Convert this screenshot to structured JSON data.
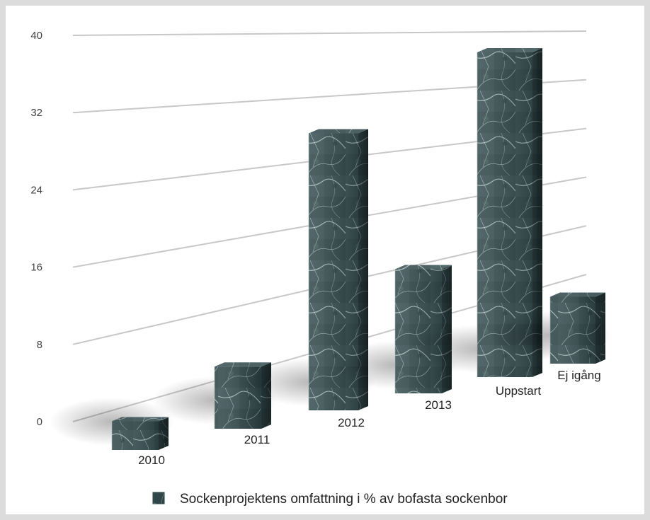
{
  "chart_data": {
    "type": "bar",
    "style": "3d-textured-marble",
    "categories": [
      "2010",
      "2011",
      "2012",
      "2013",
      "Uppstart",
      "Ej igång"
    ],
    "series": [
      {
        "name": "Sockenprojektens omfattning i % av bofasta sockenbor",
        "values": [
          3,
          6.5,
          29,
          13,
          34,
          7
        ]
      }
    ],
    "ylim": [
      0,
      40
    ],
    "yticks": [
      0,
      8,
      16,
      24,
      32,
      40
    ],
    "grid": true,
    "legend": "bottom",
    "colors": {
      "bar_face": "#3b5356",
      "bar_light": "#6f8a8c",
      "bar_dark": "#1d2c2e",
      "vein": "#cfe0e0",
      "grid": "#c8c8c8"
    }
  }
}
